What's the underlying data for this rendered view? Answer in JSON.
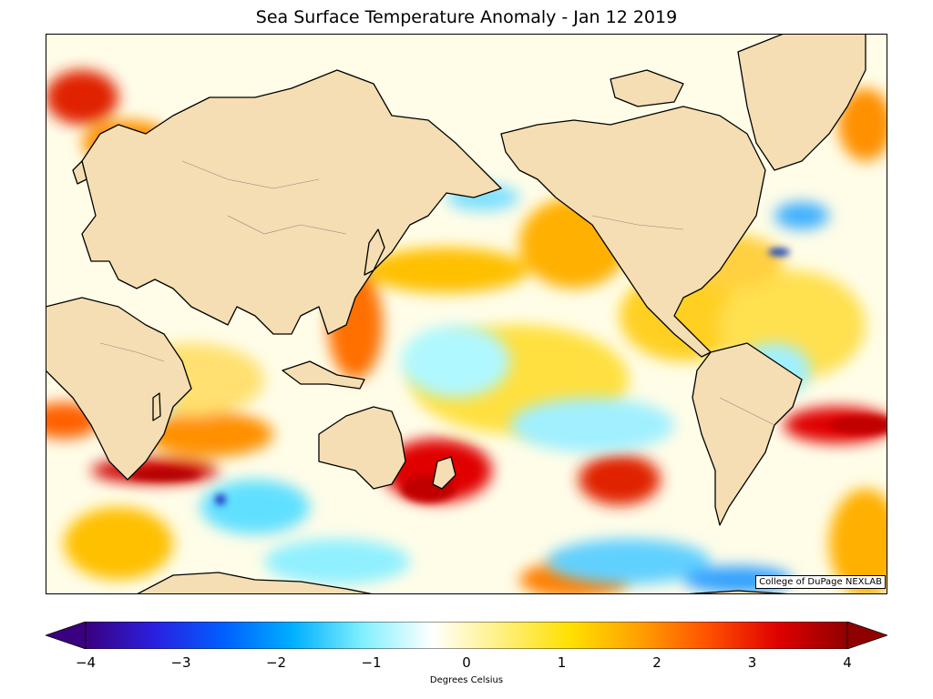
{
  "title": "Sea Surface Temperature Anomaly - Jan 12 2019",
  "credit": "College of DuPage NEXLAB",
  "colorbar": {
    "label": "Degrees Celsius",
    "ticks": [
      "−4",
      "−3",
      "−2",
      "−1",
      "0",
      "1",
      "2",
      "3",
      "4"
    ],
    "min": -4,
    "max": 4,
    "colors": [
      "#3a007f",
      "#2a20e0",
      "#0060ff",
      "#00b0ff",
      "#80f0ff",
      "#ffffff",
      "#fff080",
      "#ffe000",
      "#ffa000",
      "#ff5000",
      "#e00000",
      "#900000"
    ]
  },
  "map": {
    "land_color": "#f5deb3",
    "ocean_base_color": "#fffde0",
    "coast_color": "#000000"
  }
}
